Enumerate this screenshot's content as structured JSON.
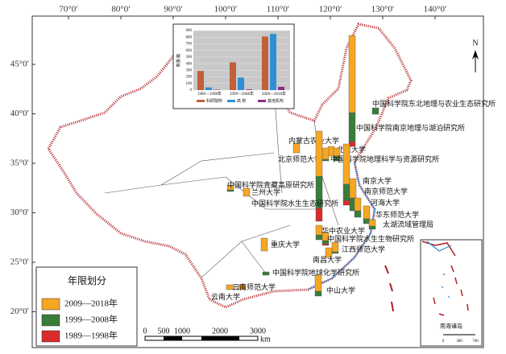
{
  "map": {
    "lon_ticks": [
      {
        "value": 70,
        "label": "70°0′"
      },
      {
        "value": 80,
        "label": "80°0′"
      },
      {
        "value": 90,
        "label": "90°0′"
      },
      {
        "value": 100,
        "label": "100°0′"
      },
      {
        "value": 110,
        "label": "110°0′"
      },
      {
        "value": 120,
        "label": "120°0′"
      },
      {
        "value": 130,
        "label": "130°0′"
      },
      {
        "value": 140,
        "label": "140°0′"
      }
    ],
    "lat_ticks": [
      {
        "value": 45,
        "label": "45°0′"
      },
      {
        "value": 40,
        "label": "40°0′"
      },
      {
        "value": 35,
        "label": "35°0′"
      },
      {
        "value": 30,
        "label": "30°0′"
      },
      {
        "value": 25,
        "label": "25°0′"
      },
      {
        "value": 20,
        "label": "20°0′"
      }
    ],
    "north": "N",
    "inset_label": "南海诸岛",
    "inset_scale": [
      "0",
      "380",
      "760"
    ],
    "scale_bar": {
      "labels": [
        "0",
        "500",
        "1000",
        "2000",
        "3000"
      ],
      "unit": "km"
    },
    "legend": {
      "title": "年限划分"
    },
    "series": [
      {
        "name": "2009—2018年",
        "color": "#f5a623"
      },
      {
        "name": "1999—2008年",
        "color": "#3a7d3a"
      },
      {
        "name": "1989—1998年",
        "color": "#d92b2b"
      }
    ],
    "institutions": [
      {
        "name": "中国科学院东北地理与农业生态研究所",
        "values": [
          0,
          4,
          0
        ]
      },
      {
        "name": "中国科学院南京地理与湖泊研究所",
        "values": [
          48,
          18,
          3
        ]
      },
      {
        "name": "内蒙古农业大学",
        "values": [
          6,
          0,
          0
        ]
      },
      {
        "name": "北京大学",
        "values": [
          6,
          0,
          0
        ]
      },
      {
        "name": "北京师范大学",
        "values": [
          7,
          1,
          0
        ]
      },
      {
        "name": "中国科学院地理科学与资源研究所",
        "values": [
          5,
          3,
          0
        ]
      },
      {
        "name": "中国科学院青藏高原研究所",
        "values": [
          3,
          1,
          0
        ]
      },
      {
        "name": "兰州大学",
        "values": [
          5,
          0,
          0
        ]
      },
      {
        "name": "中国科学院水生生态研究所",
        "values": [
          28,
          20,
          8
        ]
      },
      {
        "name": "南京大学",
        "values": [
          25,
          10,
          3
        ]
      },
      {
        "name": "南京师范大学",
        "values": [
          12,
          8,
          0
        ]
      },
      {
        "name": "河海大学",
        "values": [
          8,
          4,
          0
        ]
      },
      {
        "name": "华东师范大学",
        "values": [
          8,
          3,
          0
        ]
      },
      {
        "name": "太湖流域管理局",
        "values": [
          4,
          2,
          0
        ]
      },
      {
        "name": "华中农业大学",
        "values": [
          6,
          3,
          0
        ]
      },
      {
        "name": "中国科学院水生生物研究所",
        "values": [
          5,
          2,
          1
        ]
      },
      {
        "name": "江西师范大学",
        "values": [
          6,
          1,
          0
        ]
      },
      {
        "name": "南昌大学",
        "values": [
          6,
          0,
          0
        ]
      },
      {
        "name": "重庆大学",
        "values": [
          8,
          0,
          0
        ]
      },
      {
        "name": "中国科学院地球化学研究所",
        "values": [
          0,
          2,
          0
        ]
      },
      {
        "name": "云南师范大学",
        "values": [
          3,
          0,
          0
        ]
      },
      {
        "name": "云南大学",
        "values": [
          3,
          0,
          0
        ]
      },
      {
        "name": "中山大学",
        "values": [
          10,
          3,
          0
        ]
      }
    ]
  },
  "chart_data": {
    "type": "bar",
    "y_label": "数量/篇",
    "categories": [
      "1989—1998年",
      "1999—2008年",
      "2009—2018年"
    ],
    "series": [
      {
        "name": "科研院所",
        "color": "#c0603a",
        "values": [
          290,
          420,
          810
        ]
      },
      {
        "name": "高 校",
        "color": "#2e8fd6",
        "values": [
          40,
          190,
          850
        ]
      },
      {
        "name": "其他机构",
        "color": "#8b2a8b",
        "values": [
          5,
          10,
          50
        ]
      }
    ],
    "ylim": [
      0,
      900
    ],
    "yticks": [
      0,
      100,
      200,
      300,
      400,
      500,
      600,
      700,
      800,
      900
    ],
    "grid": true
  }
}
